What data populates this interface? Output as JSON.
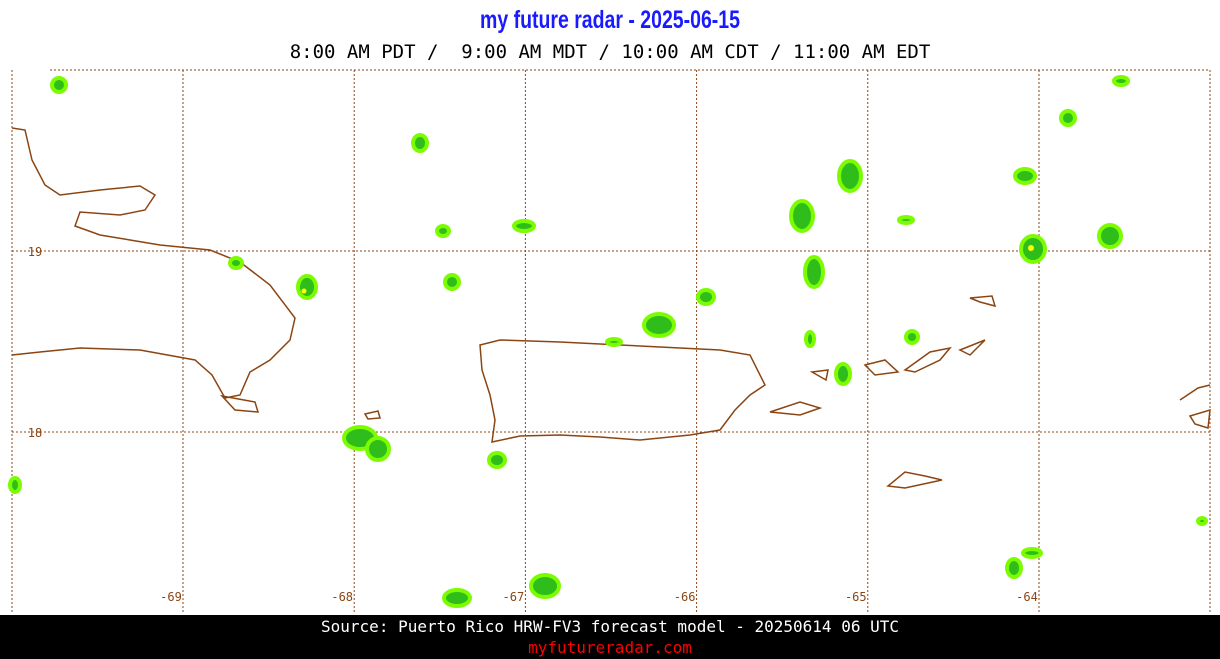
{
  "header": {
    "title": "my future radar - 2025-06-15",
    "times": "8:00 AM PDT /  9:00 AM MDT / 10:00 AM CDT / 11:00 AM EDT"
  },
  "map": {
    "lon_ticks": [
      -69,
      -68,
      -67,
      -66,
      -65,
      -64
    ],
    "lat_ticks": [
      19,
      18
    ]
  },
  "footer": {
    "source": "Source: Puerto Rico HRW-FV3 forecast model - 20250614 06 UTC",
    "site": "myfutureradar.com"
  }
}
